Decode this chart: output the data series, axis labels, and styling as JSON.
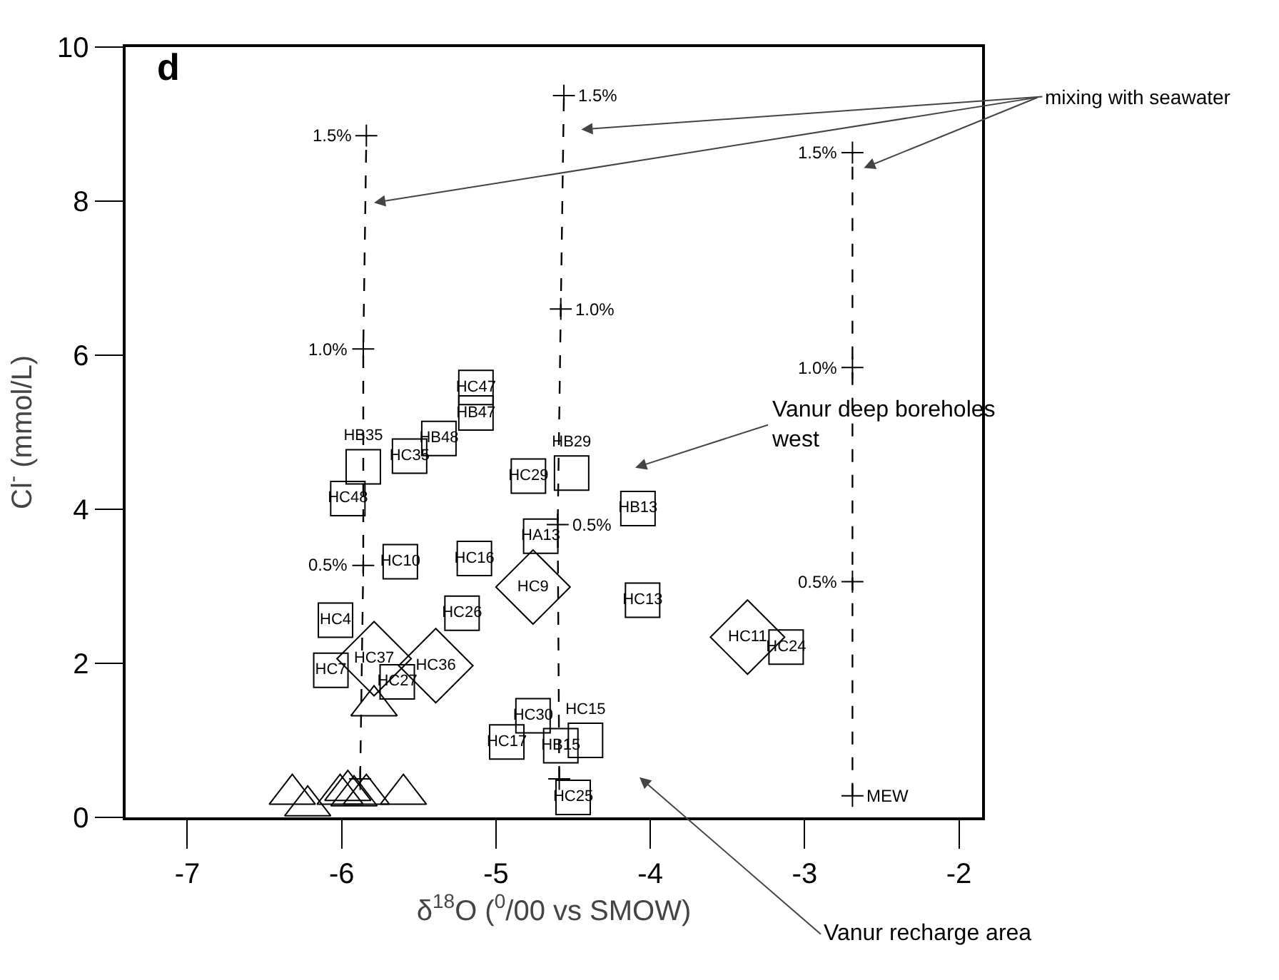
{
  "chart_data": {
    "type": "scatter",
    "xlabel": "δ$^{18}$O ($^{0}$/00 vs SMOW)",
    "ylabel": "Cl$^{-}$ (mmol/L)",
    "xlim": [
      -7.4,
      -1.85
    ],
    "ylim": [
      0,
      10
    ],
    "xticks": [
      -7,
      -6,
      -5,
      -4,
      -3,
      -2
    ],
    "yticks": [
      0,
      2,
      4,
      6,
      8,
      10
    ],
    "grid": false,
    "annotations": [
      "d",
      "mixing with seawater",
      "Vanur deep boreholes\nwest",
      "Vanur recharge area",
      {
        "text": "0.5%",
        "x": -5.86,
        "y": 3.27
      },
      {
        "text": "1.0%",
        "x": -5.86,
        "y": 6.08
      },
      {
        "text": "1.5%",
        "x": -5.84,
        "y": 8.85
      },
      {
        "text": "0.5%",
        "x": -4.6,
        "y": 3.8
      },
      {
        "text": "1.0%",
        "x": -4.58,
        "y": 6.6
      },
      {
        "text": "1.5%",
        "x": -4.56,
        "y": 9.37
      },
      {
        "text": "MEW",
        "x": -2.69,
        "y": 0.28
      },
      {
        "text": "0.5%",
        "x": -2.69,
        "y": 3.06
      },
      {
        "text": "1.0%",
        "x": -2.69,
        "y": 5.84
      },
      {
        "text": "1.5%",
        "x": -2.69,
        "y": 8.63
      }
    ],
    "series": [
      {
        "marker": "square",
        "color": "#000000",
        "x": [
          -5.13,
          -5.13,
          -5.37,
          -5.56,
          -5.86,
          -5.96,
          -5.62,
          -5.14,
          -5.22,
          -6.04,
          -6.07,
          -5.64,
          -4.79,
          -4.51,
          -4.08,
          -4.71,
          -4.05,
          -3.12,
          -4.76,
          -4.93,
          -4.58,
          -4.42,
          -4.5
        ],
        "values": [
          5.58,
          5.25,
          4.92,
          4.69,
          4.55,
          4.14,
          3.32,
          3.36,
          2.65,
          2.56,
          1.91,
          1.76,
          4.43,
          4.47,
          4.01,
          3.65,
          2.82,
          2.21,
          1.32,
          0.98,
          0.93,
          1.0,
          0.26
        ],
        "value_labels": [
          "HC47",
          "HB47",
          "HB48",
          "HC35",
          "HB35",
          "HC48",
          "HC10",
          "HC16",
          "HC26",
          "HC4",
          "HC7",
          "HC27",
          "HC29",
          "HB29",
          "HB13",
          "HA13",
          "HC13",
          "HC24",
          "HC30",
          "HC17",
          "HB15",
          "HC15",
          "HC25"
        ]
      },
      {
        "marker": "diamond",
        "color": "#000000",
        "x": [
          -4.76,
          -5.79,
          -5.39,
          -3.37
        ],
        "values": [
          2.99,
          2.06,
          1.97,
          2.34
        ],
        "value_labels": [
          "HC9",
          "HC37",
          "HC36",
          "HC11"
        ]
      },
      {
        "marker": "triangle",
        "color": "#000000",
        "x": [
          -5.79,
          -6.32,
          -6.22,
          -6.01,
          -5.96,
          -5.92,
          -5.84,
          -5.6
        ],
        "values": [
          1.45,
          0.3,
          0.15,
          0.3,
          0.35,
          0.28,
          0.3,
          0.3
        ]
      },
      {
        "type": "line",
        "marker": "cross",
        "line_style": "dashed",
        "color": "#000000",
        "x": [
          -5.88,
          -5.86,
          -5.86,
          -5.84
        ],
        "values": [
          0.5,
          3.27,
          6.08,
          8.85
        ]
      },
      {
        "type": "line",
        "marker": "cross",
        "line_style": "dashed",
        "color": "#000000",
        "x": [
          -4.59,
          -4.6,
          -4.58,
          -4.56
        ],
        "values": [
          0.5,
          3.8,
          6.6,
          9.37
        ]
      },
      {
        "type": "line",
        "marker": "cross",
        "line_style": "dashed",
        "color": "#000000",
        "x": [
          -2.69,
          -2.69,
          -2.69,
          -2.69
        ],
        "values": [
          0.28,
          3.06,
          5.84,
          8.63
        ]
      }
    ]
  }
}
